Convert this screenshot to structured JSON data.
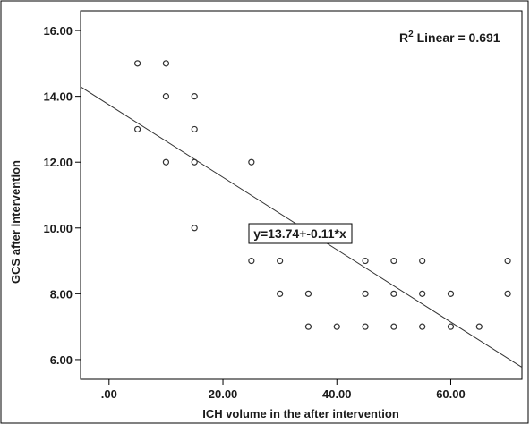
{
  "chart_data": {
    "type": "scatter",
    "title": "",
    "xlabel": "ICH volume in the after intervention",
    "ylabel": "GCS after intervention",
    "xlim": [
      -5,
      72.5
    ],
    "ylim": [
      5.4,
      16.6
    ],
    "x_ticks": [
      0,
      20,
      40,
      60
    ],
    "x_tick_labels": [
      ".00",
      "20.00",
      "40.00",
      "60.00"
    ],
    "y_ticks": [
      6,
      8,
      10,
      12,
      14,
      16
    ],
    "y_tick_labels": [
      "6.00",
      "8.00",
      "10.00",
      "12.00",
      "14.00",
      "16.00"
    ],
    "grid": false,
    "points": [
      {
        "x": 5,
        "y": 15
      },
      {
        "x": 5,
        "y": 13
      },
      {
        "x": 10,
        "y": 15
      },
      {
        "x": 10,
        "y": 14
      },
      {
        "x": 10,
        "y": 12
      },
      {
        "x": 15,
        "y": 14
      },
      {
        "x": 15,
        "y": 13
      },
      {
        "x": 15,
        "y": 12
      },
      {
        "x": 15,
        "y": 10
      },
      {
        "x": 25,
        "y": 12
      },
      {
        "x": 25,
        "y": 9
      },
      {
        "x": 30,
        "y": 9
      },
      {
        "x": 30,
        "y": 8
      },
      {
        "x": 35,
        "y": 8
      },
      {
        "x": 35,
        "y": 7
      },
      {
        "x": 40,
        "y": 7
      },
      {
        "x": 45,
        "y": 9
      },
      {
        "x": 45,
        "y": 8
      },
      {
        "x": 45,
        "y": 7
      },
      {
        "x": 50,
        "y": 9
      },
      {
        "x": 50,
        "y": 8
      },
      {
        "x": 50,
        "y": 7
      },
      {
        "x": 55,
        "y": 9
      },
      {
        "x": 55,
        "y": 8
      },
      {
        "x": 55,
        "y": 7
      },
      {
        "x": 60,
        "y": 8
      },
      {
        "x": 60,
        "y": 7
      },
      {
        "x": 65,
        "y": 7
      },
      {
        "x": 70,
        "y": 9
      },
      {
        "x": 70,
        "y": 8
      }
    ],
    "fit_line": {
      "intercept": 13.74,
      "slope": -0.11
    },
    "r2_label_prefix": "R",
    "r2_label_sup": "2",
    "r2_label_rest": " Linear = 0.691",
    "equation_label": "y=13.74+-0.11*x"
  },
  "colors": {
    "points": "#333333",
    "fit_line": "#333333",
    "axis": "#000000",
    "background": "#ffffff"
  }
}
